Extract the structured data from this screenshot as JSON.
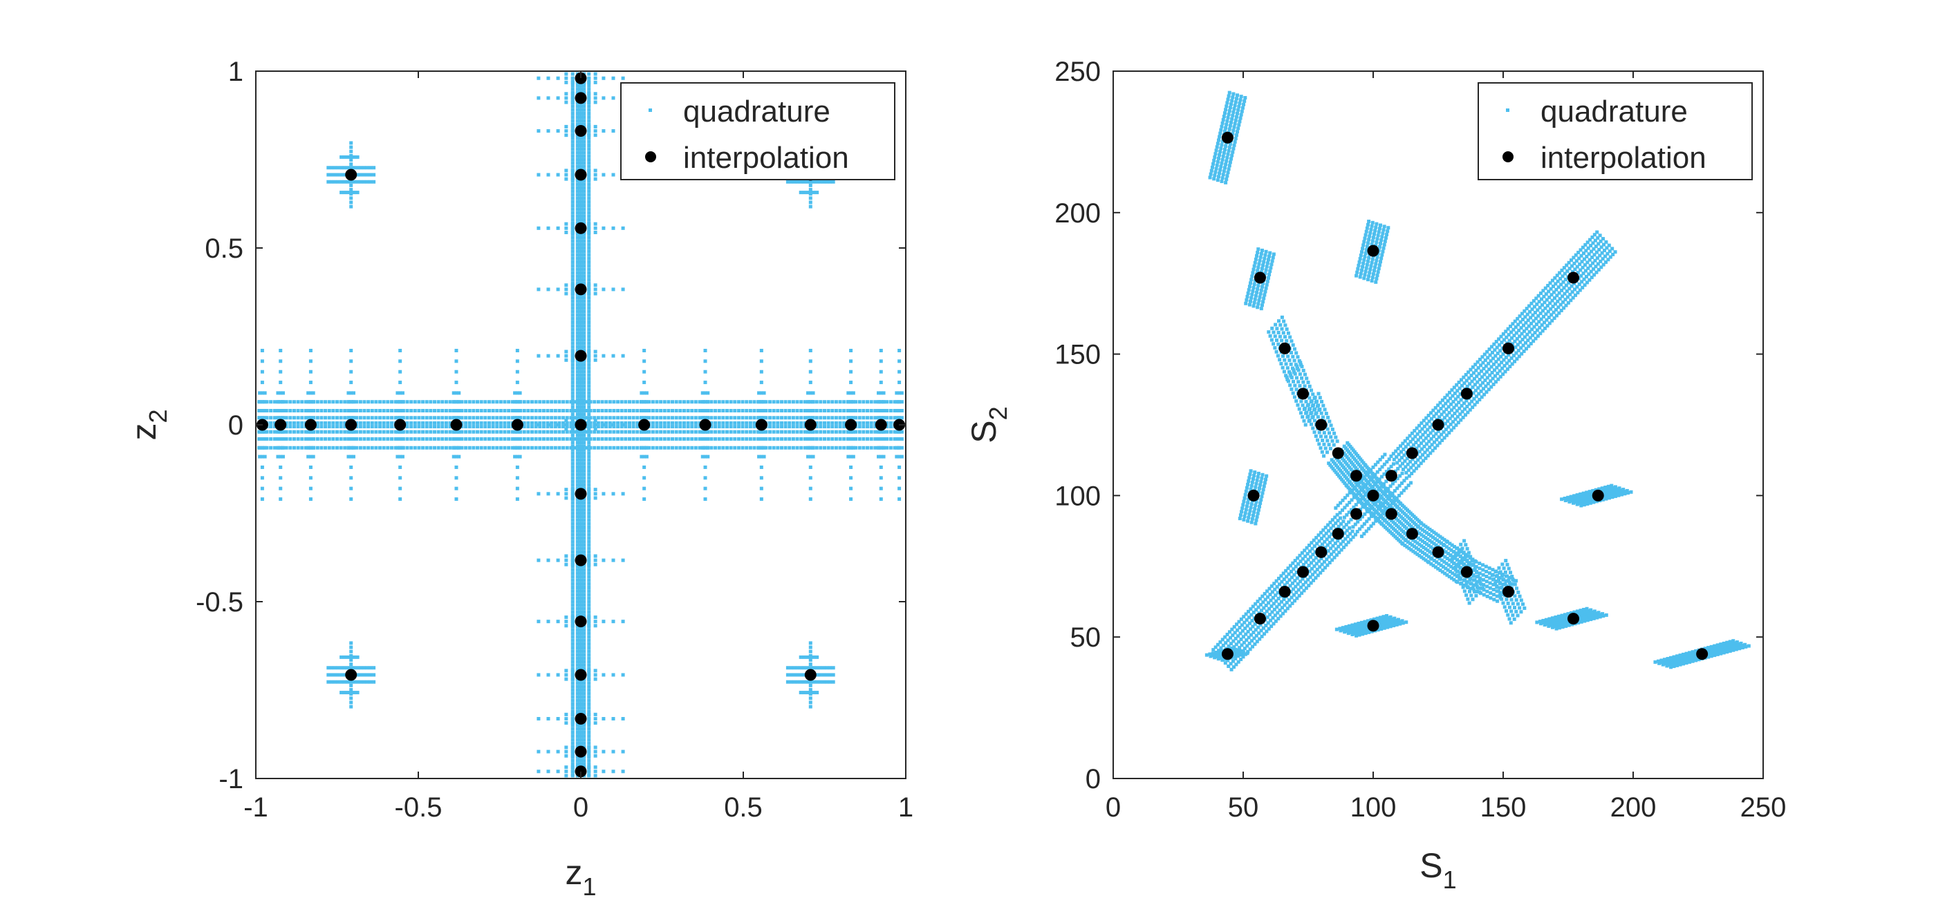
{
  "colors": {
    "quadrature": "#4DBEEE",
    "interpolation": "#000000",
    "axes": "#262626"
  },
  "chart_data": [
    {
      "type": "scatter",
      "xlabel": {
        "base": "z",
        "sub": "1"
      },
      "ylabel": {
        "base": "z",
        "sub": "2"
      },
      "xlim": [
        -1,
        1
      ],
      "ylim": [
        -1,
        1
      ],
      "xticks": [
        "-1",
        "-0.5",
        "0",
        "0.5",
        "1"
      ],
      "yticks": [
        "-1",
        "-0.5",
        "0",
        "0.5",
        "1"
      ],
      "grid": false,
      "legend": {
        "position": "top-right",
        "entries": [
          "quadrature",
          "interpolation"
        ]
      },
      "series": [
        {
          "name": "interpolation",
          "points": [
            [
              -0.98,
              0
            ],
            [
              -0.924,
              0
            ],
            [
              -0.831,
              0
            ],
            [
              -0.707,
              0
            ],
            [
              -0.556,
              0
            ],
            [
              -0.383,
              0
            ],
            [
              -0.195,
              0
            ],
            [
              0,
              0
            ],
            [
              0.195,
              0
            ],
            [
              0.383,
              0
            ],
            [
              0.556,
              0
            ],
            [
              0.707,
              0
            ],
            [
              0.831,
              0
            ],
            [
              0.924,
              0
            ],
            [
              0.98,
              0
            ],
            [
              0,
              -0.98
            ],
            [
              0,
              -0.924
            ],
            [
              0,
              -0.831
            ],
            [
              0,
              -0.707
            ],
            [
              0,
              -0.556
            ],
            [
              0,
              -0.383
            ],
            [
              0,
              -0.195
            ],
            [
              0,
              0.195
            ],
            [
              0,
              0.383
            ],
            [
              0,
              0.556
            ],
            [
              0,
              0.707
            ],
            [
              0,
              0.831
            ],
            [
              0,
              0.924
            ],
            [
              0,
              0.98
            ],
            [
              -0.707,
              0.707
            ],
            [
              0.707,
              0.707
            ],
            [
              -0.707,
              -0.707
            ],
            [
              0.707,
              -0.707
            ]
          ]
        },
        {
          "name": "quadrature",
          "clusters": [
            {
              "cx": -0.707,
              "cy": 0.707,
              "w": 0.07,
              "h": 0.09
            },
            {
              "cx": 0.707,
              "cy": 0.707,
              "w": 0.07,
              "h": 0.09
            },
            {
              "cx": -0.707,
              "cy": -0.707,
              "w": 0.07,
              "h": 0.09
            },
            {
              "cx": 0.707,
              "cy": -0.707,
              "w": 0.07,
              "h": 0.09
            }
          ],
          "h_band": {
            "xmin": -1,
            "xmax": 1,
            "h": 0.21
          },
          "v_band": {
            "ymin": -1,
            "ymax": 1,
            "w": 0.13
          }
        }
      ]
    },
    {
      "type": "scatter",
      "xlabel": {
        "base": "S",
        "sub": "1"
      },
      "ylabel": {
        "base": "S",
        "sub": "2"
      },
      "xlim": [
        0,
        250
      ],
      "ylim": [
        0,
        250
      ],
      "xticks": [
        "0",
        "50",
        "100",
        "150",
        "200",
        "250"
      ],
      "yticks": [
        "0",
        "50",
        "100",
        "150",
        "200",
        "250"
      ],
      "grid": false,
      "legend": {
        "position": "top-right",
        "entries": [
          "quadrature",
          "interpolation"
        ]
      },
      "series": [
        {
          "name": "interpolation",
          "points": [
            [
              44,
              44
            ],
            [
              56.5,
              56.5
            ],
            [
              66,
              66
            ],
            [
              73,
              73
            ],
            [
              80,
              80
            ],
            [
              86.5,
              86.5
            ],
            [
              93.5,
              93.5
            ],
            [
              100,
              100
            ],
            [
              107,
              107
            ],
            [
              115,
              115
            ],
            [
              125,
              125
            ],
            [
              136,
              136
            ],
            [
              152,
              152
            ],
            [
              177,
              177
            ],
            [
              44,
              226.5
            ],
            [
              56.5,
              177
            ],
            [
              66,
              152
            ],
            [
              73,
              136
            ],
            [
              80,
              125
            ],
            [
              86.5,
              115
            ],
            [
              93.5,
              107
            ],
            [
              107,
              93.5
            ],
            [
              115,
              86.5
            ],
            [
              125,
              80
            ],
            [
              136,
              73
            ],
            [
              152,
              66
            ],
            [
              177,
              56.5
            ],
            [
              226.5,
              44
            ],
            [
              100,
              186.5
            ],
            [
              54,
              100
            ],
            [
              186.5,
              100
            ],
            [
              100,
              54
            ]
          ]
        },
        {
          "name": "quadrature",
          "clusters": [
            {
              "cx": 44,
              "cy": 226.5,
              "len": 15,
              "wid": 3
            },
            {
              "cx": 56.5,
              "cy": 177,
              "len": 10,
              "wid": 3
            },
            {
              "cx": 100,
              "cy": 186.5,
              "len": 10,
              "wid": 4
            },
            {
              "cx": 54,
              "cy": 100,
              "len": 9,
              "wid": 3
            },
            {
              "cx": 186.5,
              "cy": 100,
              "len": 10,
              "wid": 4
            },
            {
              "cx": 100,
              "cy": 54,
              "len": 10,
              "wid": 4
            },
            {
              "cx": 226.5,
              "cy": 44,
              "len": 15,
              "wid": 3
            },
            {
              "cx": 177,
              "cy": 56.5,
              "len": 10,
              "wid": 4
            },
            {
              "cx": 44,
              "cy": 44,
              "len": 5,
              "wid": 3
            }
          ]
        }
      ]
    }
  ]
}
